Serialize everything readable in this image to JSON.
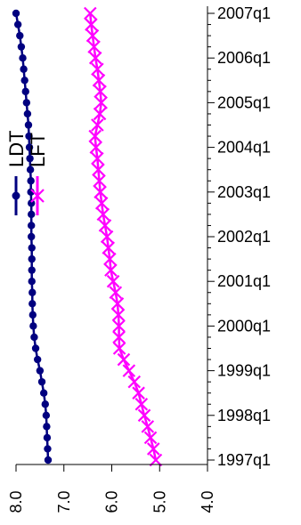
{
  "chart_data": {
    "type": "line",
    "orientation": "rotated",
    "x": [
      "1997q1",
      "1997q2",
      "1997q3",
      "1997q4",
      "1998q1",
      "1998q2",
      "1998q3",
      "1998q4",
      "1999q1",
      "1999q2",
      "1999q3",
      "1999q4",
      "2000q1",
      "2000q2",
      "2000q3",
      "2000q4",
      "2001q1",
      "2001q2",
      "2001q3",
      "2001q4",
      "2002q1",
      "2002q2",
      "2002q3",
      "2002q4",
      "2003q1",
      "2003q2",
      "2003q3",
      "2003q4",
      "2004q1",
      "2004q2",
      "2004q3",
      "2004q4",
      "2005q1",
      "2005q2",
      "2005q3",
      "2005q4",
      "2006q1",
      "2006q2",
      "2006q3",
      "2006q4",
      "2007q1"
    ],
    "x_ticks": [
      "1997q1",
      "1998q1",
      "1999q1",
      "2000q1",
      "2001q1",
      "2002q1",
      "2003q1",
      "2004q1",
      "2005q1",
      "2006q1",
      "2007q1"
    ],
    "y_ticks": [
      "8.0",
      "7.0",
      "6.0",
      "5.0",
      "4.0"
    ],
    "ylim": [
      4.0,
      8.0
    ],
    "y_reversed": true,
    "legend_position": "top-left",
    "series": [
      {
        "name": "LDT",
        "color": "#000080",
        "marker": "circle",
        "values": [
          7.33,
          7.34,
          7.35,
          7.36,
          7.37,
          7.39,
          7.42,
          7.46,
          7.5,
          7.55,
          7.59,
          7.62,
          7.64,
          7.65,
          7.66,
          7.66,
          7.67,
          7.67,
          7.67,
          7.67,
          7.68,
          7.68,
          7.68,
          7.68,
          7.69,
          7.69,
          7.7,
          7.71,
          7.72,
          7.73,
          7.74,
          7.76,
          7.78,
          7.8,
          7.82,
          7.84,
          7.86,
          7.89,
          7.92,
          7.96,
          8.0
        ]
      },
      {
        "name": "LFT",
        "color": "#ff00ff",
        "marker": "x",
        "values": [
          5.08,
          5.13,
          5.19,
          5.25,
          5.32,
          5.38,
          5.44,
          5.53,
          5.64,
          5.75,
          5.84,
          5.85,
          5.85,
          5.86,
          5.88,
          5.92,
          5.97,
          6.02,
          6.04,
          6.07,
          6.1,
          6.14,
          6.18,
          6.21,
          6.24,
          6.26,
          6.28,
          6.3,
          6.33,
          6.35,
          6.3,
          6.25,
          6.22,
          6.24,
          6.27,
          6.3,
          6.34,
          6.37,
          6.4,
          6.43,
          6.45
        ]
      }
    ]
  }
}
